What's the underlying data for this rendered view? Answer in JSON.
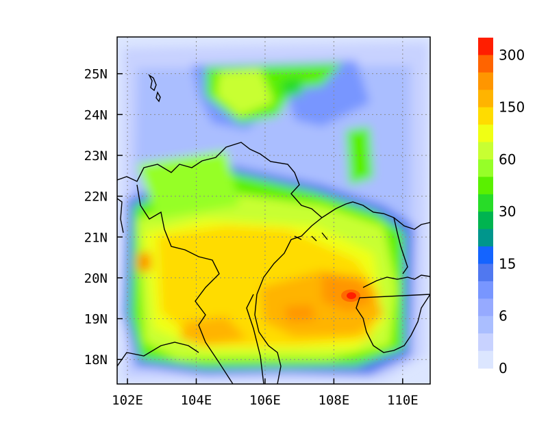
{
  "map": {
    "type": "filled-contour-map",
    "lon_range": [
      101.7,
      110.8
    ],
    "lat_range": [
      17.4,
      25.9
    ],
    "x_ticks": [
      {
        "value": 102,
        "label": "102E"
      },
      {
        "value": 104,
        "label": "104E"
      },
      {
        "value": 106,
        "label": "106E"
      },
      {
        "value": 108,
        "label": "108E"
      },
      {
        "value": 110,
        "label": "110E"
      }
    ],
    "y_ticks": [
      {
        "value": 25,
        "label": "25N"
      },
      {
        "value": 24,
        "label": "24N"
      },
      {
        "value": 23,
        "label": "23N"
      },
      {
        "value": 22,
        "label": "22N"
      },
      {
        "value": 21,
        "label": "21N"
      },
      {
        "value": 20,
        "label": "20N"
      },
      {
        "value": 19,
        "label": "19N"
      },
      {
        "value": 18,
        "label": "18N"
      }
    ],
    "grid": "dotted",
    "features": [
      "coastlines",
      "national borders"
    ],
    "peak": {
      "lon": 108.6,
      "lat": 19.6
    }
  },
  "colorbar": {
    "labels": [
      "300",
      "150",
      "60",
      "30",
      "15",
      "6",
      "0"
    ],
    "colors": [
      "#ff1e00",
      "#ff6400",
      "#ff9600",
      "#ffb400",
      "#ffdc00",
      "#f0ff14",
      "#c8ff32",
      "#96ff28",
      "#5af000",
      "#28dc28",
      "#00b450",
      "#00968c",
      "#1464ff",
      "#5078f0",
      "#7896ff",
      "#96aaff",
      "#aabeff",
      "#c8d2ff",
      "#dce6ff"
    ]
  }
}
